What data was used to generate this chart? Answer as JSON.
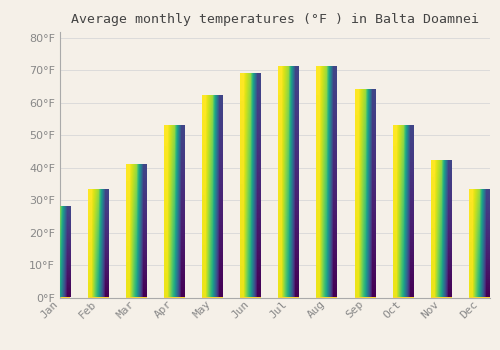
{
  "title": "Average monthly temperatures (°F ) in Balta Doamnei",
  "months": [
    "Jan",
    "Feb",
    "Mar",
    "Apr",
    "May",
    "Jun",
    "Jul",
    "Aug",
    "Sep",
    "Oct",
    "Nov",
    "Dec"
  ],
  "values": [
    28,
    33,
    41,
    53,
    62,
    69,
    71,
    71,
    64,
    53,
    42,
    33
  ],
  "bar_color_top": "#FDD835",
  "bar_color_bottom": "#F59500",
  "background_color": "#F5F0E8",
  "grid_color": "#D8D8D8",
  "ylim": [
    0,
    82
  ],
  "yticks": [
    0,
    10,
    20,
    30,
    40,
    50,
    60,
    70,
    80
  ],
  "title_fontsize": 9.5,
  "tick_fontsize": 8,
  "bar_width": 0.55
}
